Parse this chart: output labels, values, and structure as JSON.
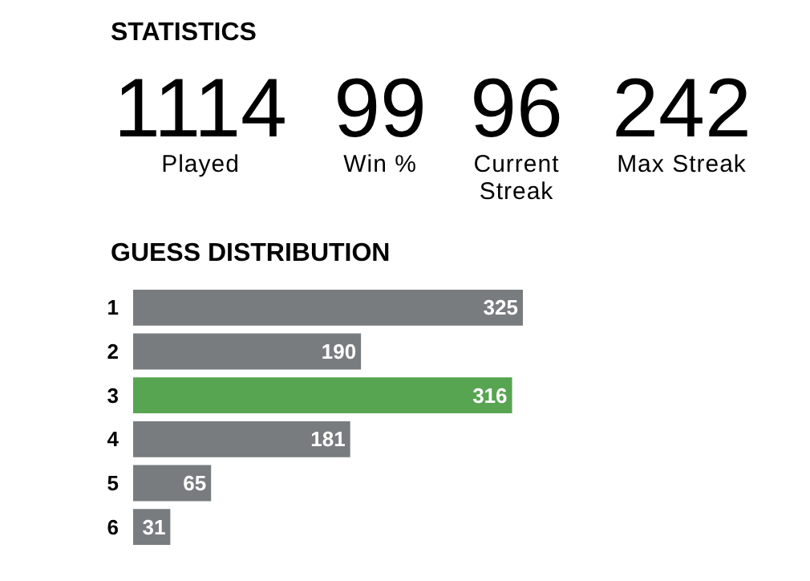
{
  "chart_data": [
    {
      "type": "other",
      "title": "STATISTICS",
      "categories": [
        "Played",
        "Win %",
        "Current Streak",
        "Max Streak"
      ],
      "values": [
        1114,
        99,
        96,
        242
      ],
      "value_labels": [
        "1114",
        "99",
        "96",
        "242"
      ]
    },
    {
      "type": "bar",
      "orientation": "horizontal",
      "title": "GUESS DISTRIBUTION",
      "categories": [
        "1",
        "2",
        "3",
        "4",
        "5",
        "6"
      ],
      "values": [
        325,
        190,
        316,
        181,
        65,
        31
      ],
      "colors": [
        "#787c7e",
        "#787c7e",
        "#57a451",
        "#787c7e",
        "#787c7e",
        "#787c7e"
      ],
      "xlim": [
        0,
        325
      ],
      "data_labels": true,
      "tick_labels": "y",
      "grid": false
    }
  ]
}
